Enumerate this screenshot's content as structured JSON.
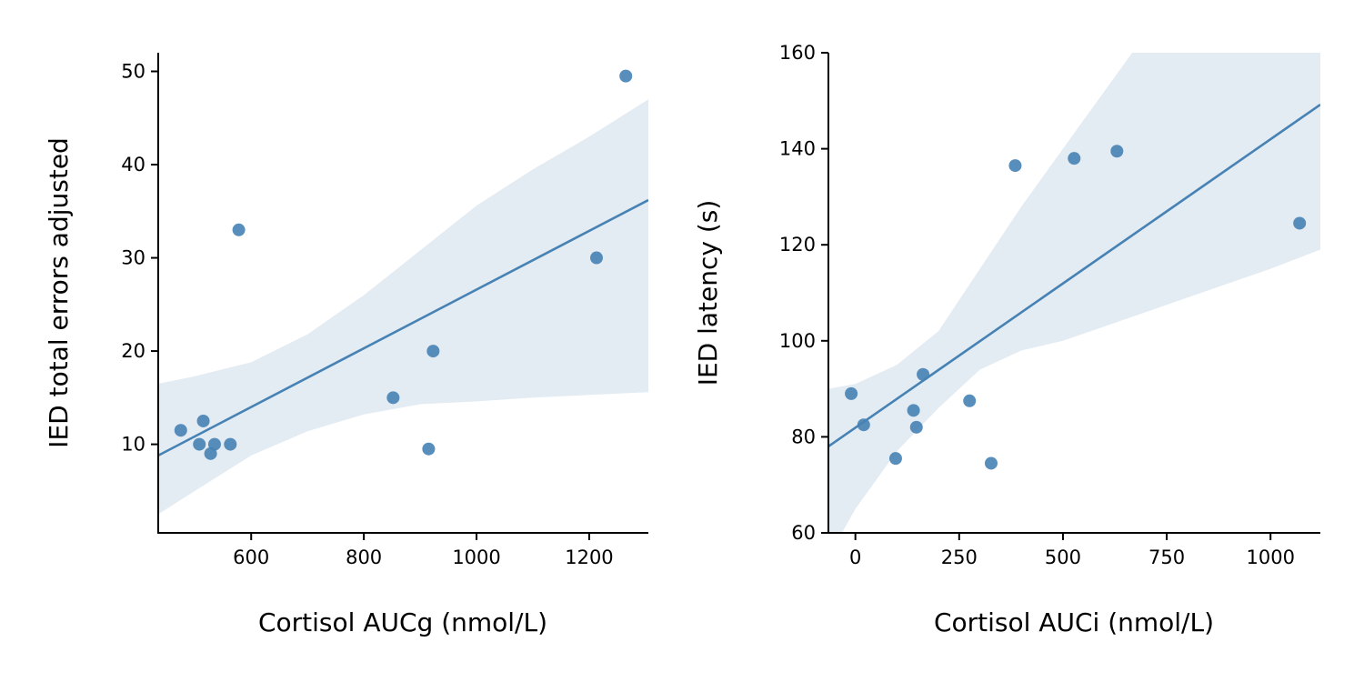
{
  "colors": {
    "points": "#4682b4",
    "line": "#4682b4",
    "band": "#e3ebf3"
  },
  "chart_data": [
    {
      "type": "scatter",
      "xlabel": "Cortisol AUCg (nmol/L)",
      "ylabel": "IED total errors adjusted",
      "xlim": [
        435,
        1305
      ],
      "ylim": [
        0.5,
        52
      ],
      "xticks": [
        600,
        800,
        1000,
        1200
      ],
      "yticks": [
        10,
        20,
        30,
        40,
        50
      ],
      "points": [
        {
          "x": 475,
          "y": 11.5
        },
        {
          "x": 508,
          "y": 10
        },
        {
          "x": 515,
          "y": 12.5
        },
        {
          "x": 528,
          "y": 9
        },
        {
          "x": 535,
          "y": 10
        },
        {
          "x": 563,
          "y": 10
        },
        {
          "x": 578,
          "y": 33
        },
        {
          "x": 852,
          "y": 15
        },
        {
          "x": 915,
          "y": 9.5
        },
        {
          "x": 923,
          "y": 20
        },
        {
          "x": 1213,
          "y": 30
        },
        {
          "x": 1265,
          "y": 49.5
        }
      ],
      "regression": {
        "x": [
          435,
          1305
        ],
        "y": [
          8.8,
          36.2
        ]
      },
      "ci_band": [
        {
          "x": 435,
          "lo": 2.5,
          "hi": 16.5
        },
        {
          "x": 500,
          "lo": 5.0,
          "hi": 17.3
        },
        {
          "x": 600,
          "lo": 8.8,
          "hi": 18.8
        },
        {
          "x": 700,
          "lo": 11.4,
          "hi": 21.8
        },
        {
          "x": 800,
          "lo": 13.2,
          "hi": 26.0
        },
        {
          "x": 900,
          "lo": 14.3,
          "hi": 30.8
        },
        {
          "x": 1000,
          "lo": 14.6,
          "hi": 35.6
        },
        {
          "x": 1100,
          "lo": 15.0,
          "hi": 39.5
        },
        {
          "x": 1200,
          "lo": 15.3,
          "hi": 43.0
        },
        {
          "x": 1305,
          "lo": 15.6,
          "hi": 47.0
        }
      ]
    },
    {
      "type": "scatter",
      "xlabel": "Cortisol AUCi (nmol/L)",
      "ylabel": "IED latency (s)",
      "xlim": [
        -65,
        1120
      ],
      "ylim": [
        60,
        160
      ],
      "xticks": [
        0,
        250,
        500,
        750,
        1000
      ],
      "yticks": [
        60,
        80,
        100,
        120,
        140,
        160
      ],
      "points": [
        {
          "x": -10,
          "y": 89
        },
        {
          "x": 20,
          "y": 82.5
        },
        {
          "x": 97,
          "y": 75.5
        },
        {
          "x": 140,
          "y": 85.5
        },
        {
          "x": 147,
          "y": 82
        },
        {
          "x": 163,
          "y": 93
        },
        {
          "x": 275,
          "y": 87.5
        },
        {
          "x": 327,
          "y": 74.5
        },
        {
          "x": 385,
          "y": 136.5
        },
        {
          "x": 527,
          "y": 138
        },
        {
          "x": 630,
          "y": 139.5
        },
        {
          "x": 1070,
          "y": 124.5
        }
      ],
      "regression": {
        "x": [
          -65,
          1120
        ],
        "y": [
          78.0,
          149.2
        ]
      },
      "ci_band": [
        {
          "x": -65,
          "lo": 55,
          "hi": 90
        },
        {
          "x": 0,
          "lo": 65,
          "hi": 91
        },
        {
          "x": 100,
          "lo": 77,
          "hi": 95
        },
        {
          "x": 200,
          "lo": 86,
          "hi": 102
        },
        {
          "x": 300,
          "lo": 94,
          "hi": 115
        },
        {
          "x": 400,
          "lo": 98,
          "hi": 128
        },
        {
          "x": 500,
          "lo": 100,
          "hi": 140
        },
        {
          "x": 600,
          "lo": 103,
          "hi": 152
        },
        {
          "x": 700,
          "lo": 106,
          "hi": 164
        },
        {
          "x": 800,
          "lo": 109,
          "hi": 176
        },
        {
          "x": 900,
          "lo": 112,
          "hi": 188
        },
        {
          "x": 1000,
          "lo": 115,
          "hi": 200
        },
        {
          "x": 1120,
          "lo": 119,
          "hi": 213
        }
      ]
    }
  ]
}
